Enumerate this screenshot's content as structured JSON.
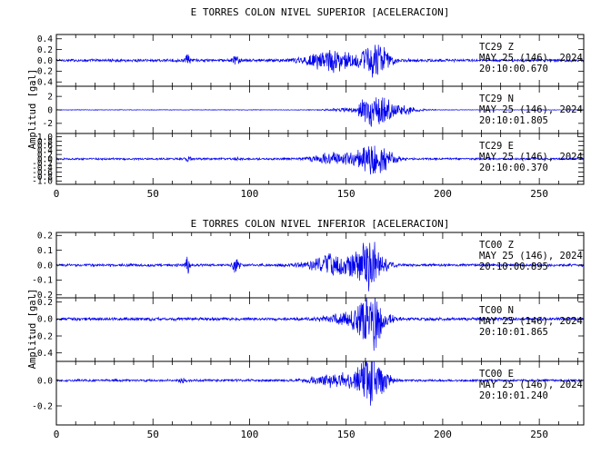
{
  "chart_data": [
    {
      "type": "line",
      "title": "E TORRES COLON NIVEL SUPERIOR [ACELERACION]",
      "ylabel": "Amplitud [gal]",
      "xlim": [
        0,
        273
      ],
      "x_ticks": [
        0,
        50,
        100,
        150,
        200,
        250
      ],
      "x_tick_labels": [
        "0",
        "50",
        "100",
        "150",
        "200",
        "250"
      ],
      "series": [
        {
          "name": "TC29 Z",
          "station": "TC29",
          "component": "Z",
          "date": "MAY 25 (146), 2024",
          "time": "20:10:00.670",
          "ylim": [
            -0.48,
            0.48
          ],
          "y_ticks": [
            0.4,
            0.2,
            0.0,
            -0.2,
            -0.4
          ],
          "y_tick_labels": [
            "0.4",
            "0.2",
            "0.0",
            "-0.2",
            "-0.4"
          ],
          "noise": 0.03,
          "events": [
            [
              68,
              0.12,
              1.0
            ],
            [
              93,
              0.1,
              1.2
            ],
            [
              142,
              0.22,
              9
            ],
            [
              165,
              0.38,
              5
            ]
          ]
        },
        {
          "name": "TC29 N",
          "station": "TC29",
          "component": "N",
          "date": "MAY 25 (146), 2024",
          "time": "20:10:01.805",
          "ylim": [
            -3.5,
            3.5
          ],
          "y_ticks": [
            2,
            0,
            -2
          ],
          "y_tick_labels": [
            "2",
            "0",
            "-2"
          ],
          "noise": 0.05,
          "events": [
            [
              150,
              0.3,
              7
            ],
            [
              164,
              2.6,
              5
            ],
            [
              175,
              1.1,
              8
            ]
          ]
        },
        {
          "name": "TC29 E",
          "station": "TC29",
          "component": "E",
          "date": "MAY 25 (146), 2024",
          "time": "20:10:00.370",
          "ylim": [
            -1.15,
            1.15
          ],
          "y_ticks": [
            1.0,
            0.8,
            0.6,
            0.4,
            0.2,
            0.0,
            -0.2,
            -0.4,
            -0.6,
            -0.8,
            -1.0
          ],
          "y_tick_labels": [
            "1.0",
            "0.8",
            "0.6",
            "0.4",
            "0.2",
            "0.0",
            "-0.2",
            "-0.4",
            "-0.6",
            "-0.8",
            "-1.0"
          ],
          "noise": 0.05,
          "events": [
            [
              68,
              0.12,
              1.0
            ],
            [
              93,
              0.1,
              1.2
            ],
            [
              145,
              0.3,
              9
            ],
            [
              165,
              0.9,
              6
            ]
          ]
        }
      ]
    },
    {
      "type": "line",
      "title": "E TORRES COLON NIVEL INFERIOR [ACELERACION]",
      "ylabel": "Amplitud [gal]",
      "xlim": [
        0,
        273
      ],
      "x_ticks": [
        0,
        50,
        100,
        150,
        200,
        250
      ],
      "x_tick_labels": [
        "0",
        "50",
        "100",
        "150",
        "200",
        "250"
      ],
      "series": [
        {
          "name": "TC00 Z",
          "station": "TC00",
          "component": "Z",
          "date": "MAY 25 (146), 2024",
          "time": "20:10:00.895",
          "ylim": [
            -0.22,
            0.22
          ],
          "y_ticks": [
            0.2,
            0.1,
            0.0,
            -0.1,
            -0.2
          ],
          "y_tick_labels": [
            "0.2",
            "0.1",
            "0.0",
            "-0.1",
            "-0.2"
          ],
          "noise": 0.01,
          "events": [
            [
              68,
              0.09,
              0.8
            ],
            [
              93,
              0.05,
              1.2
            ],
            [
              145,
              0.08,
              10
            ],
            [
              162,
              0.18,
              5
            ]
          ]
        },
        {
          "name": "TC00 N",
          "station": "TC00",
          "component": "N",
          "date": "MAY 25 (146), 2024",
          "time": "20:10:01.865",
          "ylim": [
            -0.5,
            0.25
          ],
          "y_ticks": [
            0.2,
            0.0,
            -0.2,
            -0.4
          ],
          "y_tick_labels": [
            "0.2",
            "0.0",
            "-0.2",
            "-0.4"
          ],
          "noise": 0.02,
          "events": [
            [
              150,
              0.06,
              8
            ],
            [
              163,
              0.38,
              5
            ]
          ]
        },
        {
          "name": "TC00 E",
          "station": "TC00",
          "component": "E",
          "date": "MAY 25 (146), 2024",
          "time": "20:10:01.240",
          "ylim": [
            -0.35,
            0.15
          ],
          "y_ticks": [
            0.0,
            -0.2
          ],
          "y_tick_labels": [
            "0.0",
            "-0.2"
          ],
          "noise": 0.01,
          "events": [
            [
              65,
              0.02,
              1.2
            ],
            [
              145,
              0.06,
              9
            ],
            [
              163,
              0.25,
              5
            ]
          ]
        }
      ]
    }
  ]
}
